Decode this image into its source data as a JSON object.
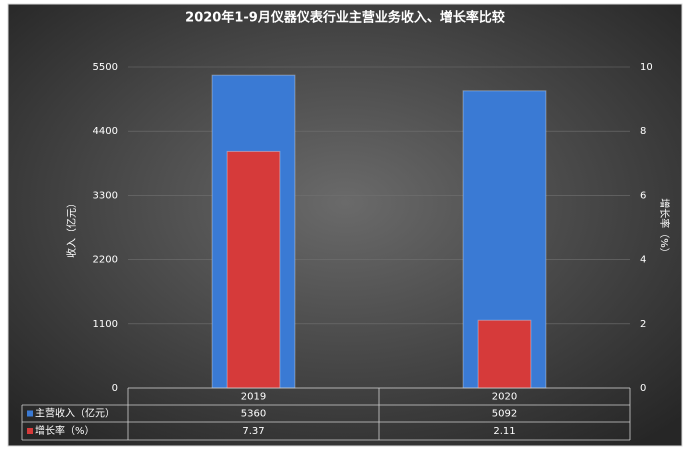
{
  "chart_data": {
    "type": "bar",
    "title": "2020年1-9月仪器仪表行业主营业务收入、增长率比较",
    "y_label": "收入（亿元）",
    "y2_label": "增长率（%）",
    "categories": [
      "2019",
      "2020"
    ],
    "series": [
      {
        "name": "主营收入（亿元）",
        "color": "#3a7ad4",
        "values": [
          5360,
          5092
        ]
      },
      {
        "name": "增长率（%）",
        "color": "#d63a3a",
        "values": [
          7.37,
          2.11
        ],
        "axis": "y2"
      }
    ],
    "ylim": [
      0,
      5500
    ],
    "yticks": [
      0,
      1100,
      2200,
      3300,
      4400,
      5500
    ],
    "y2lim": [
      0,
      10
    ],
    "y2ticks": [
      0,
      2,
      4,
      6,
      8,
      10
    ],
    "grid": true,
    "data_table": true
  }
}
